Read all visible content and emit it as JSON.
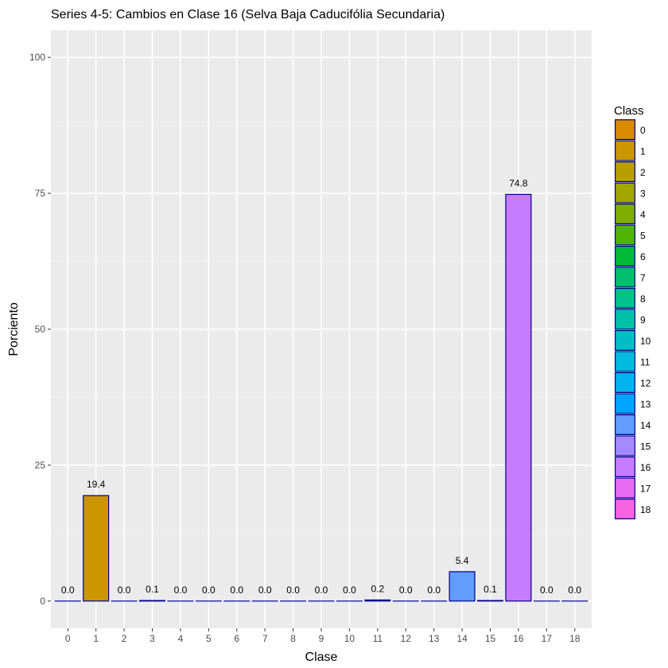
{
  "chart_data": {
    "type": "bar",
    "title": "Series 4-5: Cambios en Clase 16 (Selva Baja Caducifólia Secundaria)",
    "xlabel": "Clase",
    "ylabel": "Porciento",
    "ylim": [
      -5,
      105
    ],
    "yticks": [
      0,
      25,
      50,
      75,
      100
    ],
    "grid": true,
    "legend": {
      "title": "Class",
      "position": "right"
    },
    "categories": [
      "0",
      "1",
      "2",
      "3",
      "4",
      "5",
      "6",
      "7",
      "8",
      "9",
      "10",
      "11",
      "12",
      "13",
      "14",
      "15",
      "16",
      "17",
      "18"
    ],
    "values": [
      0.0,
      19.4,
      0.0,
      0.1,
      0.0,
      0.0,
      0.0,
      0.0,
      0.0,
      0.0,
      0.0,
      0.2,
      0.0,
      0.0,
      5.4,
      0.1,
      74.8,
      0.0,
      0.0
    ],
    "value_labels": [
      "0.0",
      "19.4",
      "0.0",
      "0.1",
      "0.0",
      "0.0",
      "0.0",
      "0.0",
      "0.0",
      "0.0",
      "0.0",
      "0.2",
      "0.0",
      "0.0",
      "5.4",
      "0.1",
      "74.8",
      "0.0",
      "0.0"
    ],
    "colors": [
      "#D98C00",
      "#CC9600",
      "#BA9E00",
      "#A3A500",
      "#7FAE00",
      "#4FB500",
      "#00BA38",
      "#00BE6C",
      "#00C08B",
      "#00C1A7",
      "#00BFC4",
      "#00BBDB",
      "#00B4EF",
      "#00A5FF",
      "#619CFF",
      "#A58AFF",
      "#C77CFF",
      "#E76BF3",
      "#F763E0"
    ],
    "bar_outline": "#00008B"
  }
}
